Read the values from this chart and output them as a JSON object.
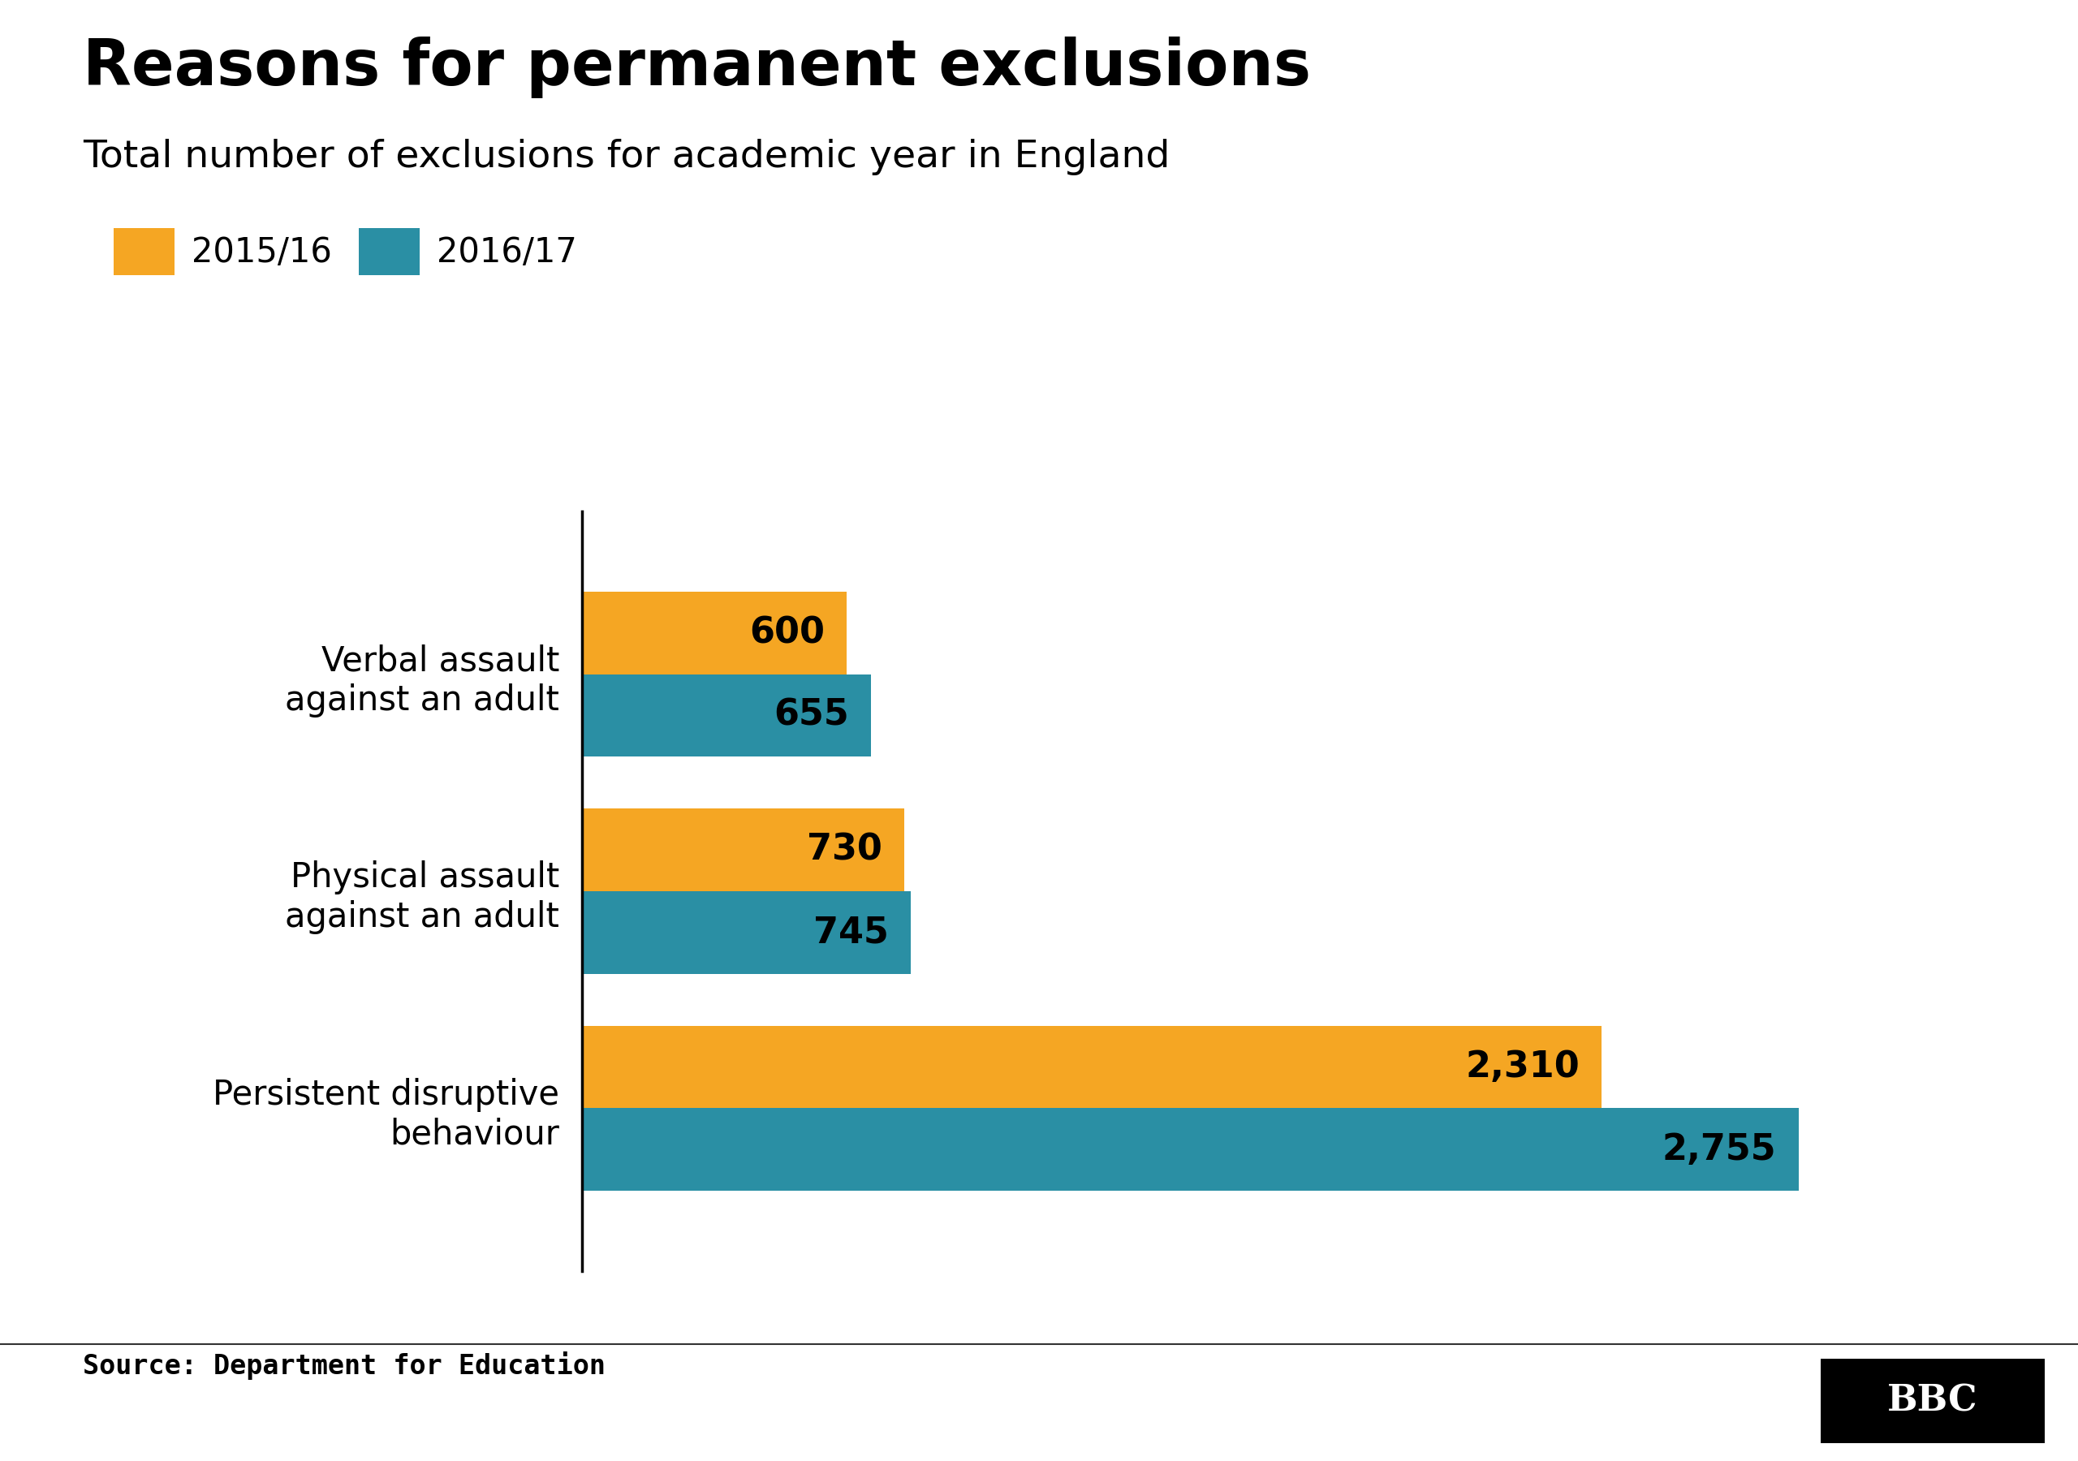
{
  "title": "Reasons for permanent exclusions",
  "subtitle": "Total number of exclusions for academic year in England",
  "categories": [
    "Persistent disruptive\nbehaviour",
    "Physical assault\nagainst an adult",
    "Verbal assault\nagainst an adult"
  ],
  "values_2016": [
    2310,
    730,
    600
  ],
  "values_2017": [
    2755,
    745,
    655
  ],
  "labels_2016": [
    "2,310",
    "730",
    "600"
  ],
  "labels_2017": [
    "2,755",
    "745",
    "655"
  ],
  "color_2016": "#F5A623",
  "color_2017": "#2A8FA4",
  "legend_labels": [
    "2015/16",
    "2016/17"
  ],
  "source": "Source: Department for Education",
  "bbc_text": "BBC",
  "background_color": "#ffffff",
  "title_fontsize": 56,
  "subtitle_fontsize": 34,
  "legend_fontsize": 30,
  "label_fontsize": 32,
  "category_fontsize": 30,
  "source_fontsize": 24,
  "xlim": [
    0,
    3200
  ],
  "bar_height": 0.38
}
